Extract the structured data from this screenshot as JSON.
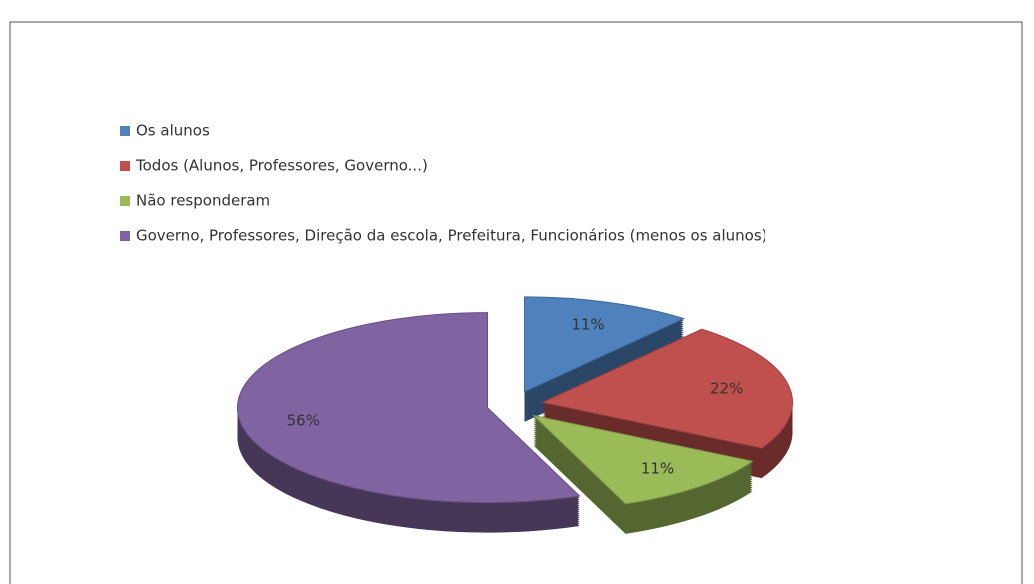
{
  "chart_data": {
    "type": "pie",
    "categories": [
      "Os alunos",
      "Todos (Alunos, Professores,  Governo...)",
      "Não responderam",
      "Governo, Professores,  Direção da escola, Prefeitura, Funcionários (menos os alunos)"
    ],
    "values": [
      11,
      22,
      11,
      56
    ],
    "value_labels": [
      "11%",
      "22%",
      "11%",
      "56%"
    ],
    "colors": [
      "#4f81bd",
      "#c0504d",
      "#9bbb59",
      "#8064a2"
    ]
  }
}
